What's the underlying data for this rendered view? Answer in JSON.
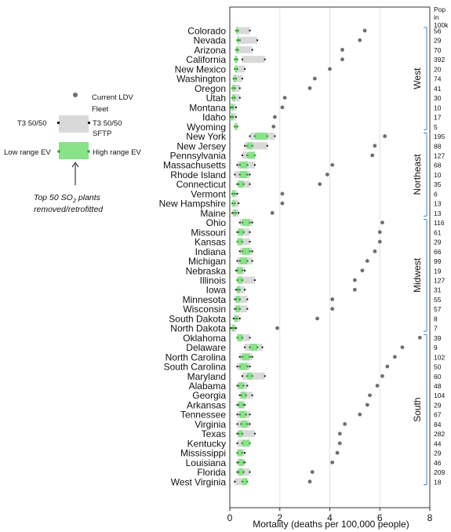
{
  "chart_data": {
    "type": "range-dot",
    "xlabel": "Mortality (deaths per 100,000 people)",
    "xlim": [
      0,
      8
    ],
    "xticks": [
      0,
      2,
      4,
      6,
      8
    ],
    "pop_header": [
      "Pop",
      "in",
      "100k"
    ],
    "legend": {
      "fleet": [
        "Current LDV",
        "Fleet"
      ],
      "t3_left": "T3 50/50",
      "t3_right": [
        "T3 50/50",
        "SFTP"
      ],
      "ev_low": "Low range EV",
      "ev_high": "High range EV",
      "note_line1": "Top 50 SO",
      "note_sub": "2",
      "note_line1_end": " plants",
      "note_line2": "removed/retrofitted"
    },
    "regions": [
      {
        "name": "West",
        "states": [
          {
            "name": "Colorado",
            "pop": "56",
            "t3": [
              0.3,
              0.8
            ],
            "ev": [
              0.25,
              0.3
            ],
            "fleet": 5.4
          },
          {
            "name": "Nevada",
            "pop": "29",
            "t3": [
              0.4,
              1.1
            ],
            "ev": [
              0.3,
              0.35
            ],
            "fleet": 5.2
          },
          {
            "name": "Arizona",
            "pop": "70",
            "t3": [
              0.3,
              0.9
            ],
            "ev": [
              0.25,
              0.3
            ],
            "fleet": 4.5
          },
          {
            "name": "California",
            "pop": "392",
            "t3": [
              0.5,
              1.4
            ],
            "ev": [
              0.2,
              0.3
            ],
            "fleet": 4.5
          },
          {
            "name": "New Mexico",
            "pop": "20",
            "t3": [
              0.2,
              0.6
            ],
            "ev": [
              0.2,
              0.3
            ],
            "fleet": 4.0
          },
          {
            "name": "Washington",
            "pop": "74",
            "t3": [
              0.15,
              0.5
            ],
            "ev": [
              0.15,
              0.25
            ],
            "fleet": 3.4
          },
          {
            "name": "Oregon",
            "pop": "41",
            "t3": [
              0.1,
              0.4
            ],
            "ev": [
              0.1,
              0.2
            ],
            "fleet": 3.2
          },
          {
            "name": "Utah",
            "pop": "30",
            "t3": [
              0.1,
              0.4
            ],
            "ev": [
              0.1,
              0.2
            ],
            "fleet": 2.2
          },
          {
            "name": "Montana",
            "pop": "10",
            "t3": [
              0.05,
              0.25
            ],
            "ev": [
              0.05,
              0.1
            ],
            "fleet": 2.1
          },
          {
            "name": "Idaho",
            "pop": "17",
            "t3": [
              0.05,
              0.25
            ],
            "ev": [
              0.05,
              0.1
            ],
            "fleet": 1.8
          },
          {
            "name": "Wyoming",
            "pop": "5",
            "t3": [
              0.2,
              0.3
            ],
            "ev": [
              0.2,
              0.3
            ],
            "fleet": 1.75
          }
        ]
      },
      {
        "name": "Northeast",
        "states": [
          {
            "name": "New York",
            "pop": "195",
            "t3": [
              0.8,
              1.8
            ],
            "ev": [
              1.0,
              1.5
            ],
            "fleet": 6.2
          },
          {
            "name": "New Jersey",
            "pop": "88",
            "t3": [
              0.6,
              1.5
            ],
            "ev": [
              0.7,
              0.9
            ],
            "fleet": 5.8
          },
          {
            "name": "Pennsylvania",
            "pop": "127",
            "t3": [
              0.5,
              1.0
            ],
            "ev": [
              0.7,
              1.0
            ],
            "fleet": 5.7
          },
          {
            "name": "Massachusetts",
            "pop": "68",
            "t3": [
              0.3,
              1.0
            ],
            "ev": [
              0.4,
              0.7
            ],
            "fleet": 4.1
          },
          {
            "name": "Rhode Island",
            "pop": "10",
            "t3": [
              0.2,
              0.8
            ],
            "ev": [
              0.4,
              0.7
            ],
            "fleet": 3.9
          },
          {
            "name": "Connecticut",
            "pop": "35",
            "t3": [
              0.3,
              0.8
            ],
            "ev": [
              0.35,
              0.55
            ],
            "fleet": 3.6
          },
          {
            "name": "Vermont",
            "pop": "6",
            "t3": [
              0.1,
              0.3
            ],
            "ev": [
              0.1,
              0.2
            ],
            "fleet": 2.1
          },
          {
            "name": "New Hampshire",
            "pop": "13",
            "t3": [
              0.1,
              0.35
            ],
            "ev": [
              0.1,
              0.2
            ],
            "fleet": 2.1
          },
          {
            "name": "Maine",
            "pop": "13",
            "t3": [
              0.1,
              0.35
            ],
            "ev": [
              0.15,
              0.25
            ],
            "fleet": 1.7
          }
        ]
      },
      {
        "name": "Midwest",
        "states": [
          {
            "name": "Ohio",
            "pop": "116",
            "t3": [
              0.4,
              0.9
            ],
            "ev": [
              0.5,
              0.8
            ],
            "fleet": 6.1
          },
          {
            "name": "Missouri",
            "pop": "61",
            "t3": [
              0.3,
              0.8
            ],
            "ev": [
              0.35,
              0.55
            ],
            "fleet": 6.0
          },
          {
            "name": "Kansas",
            "pop": "29",
            "t3": [
              0.3,
              0.8
            ],
            "ev": [
              0.3,
              0.5
            ],
            "fleet": 6.0
          },
          {
            "name": "Indiana",
            "pop": "66",
            "t3": [
              0.4,
              0.9
            ],
            "ev": [
              0.5,
              0.8
            ],
            "fleet": 5.8
          },
          {
            "name": "Michigan",
            "pop": "99",
            "t3": [
              0.3,
              0.9
            ],
            "ev": [
              0.4,
              0.7
            ],
            "fleet": 5.5
          },
          {
            "name": "Nebraska",
            "pop": "19",
            "t3": [
              0.25,
              0.6
            ],
            "ev": [
              0.3,
              0.5
            ],
            "fleet": 5.3
          },
          {
            "name": "Illinois",
            "pop": "127",
            "t3": [
              0.3,
              1.0
            ],
            "ev": [
              0.3,
              0.5
            ],
            "fleet": 5.0
          },
          {
            "name": "Iowa",
            "pop": "31",
            "t3": [
              0.25,
              0.6
            ],
            "ev": [
              0.3,
              0.4
            ],
            "fleet": 5.0
          },
          {
            "name": "Minnesota",
            "pop": "55",
            "t3": [
              0.2,
              0.7
            ],
            "ev": [
              0.25,
              0.4
            ],
            "fleet": 4.1
          },
          {
            "name": "Wisconsin",
            "pop": "57",
            "t3": [
              0.2,
              0.7
            ],
            "ev": [
              0.25,
              0.4
            ],
            "fleet": 4.1
          },
          {
            "name": "South Dakota",
            "pop": "8",
            "t3": [
              0.15,
              0.4
            ],
            "ev": [
              0.2,
              0.3
            ],
            "fleet": 3.5
          },
          {
            "name": "North Dakota",
            "pop": "7",
            "t3": [
              0.05,
              0.25
            ],
            "ev": [
              0.1,
              0.15
            ],
            "fleet": 1.9
          }
        ]
      },
      {
        "name": "South",
        "states": [
          {
            "name": "Oklahoma",
            "pop": "39",
            "t3": [
              0.3,
              0.8
            ],
            "ev": [
              0.3,
              0.5
            ],
            "fleet": 7.6
          },
          {
            "name": "Delaware",
            "pop": "9",
            "t3": [
              0.6,
              1.3
            ],
            "ev": [
              0.8,
              1.1
            ],
            "fleet": 6.9
          },
          {
            "name": "North Carolina",
            "pop": "102",
            "t3": [
              0.4,
              0.9
            ],
            "ev": [
              0.5,
              0.8
            ],
            "fleet": 6.6
          },
          {
            "name": "South Carolina",
            "pop": "50",
            "t3": [
              0.3,
              0.8
            ],
            "ev": [
              0.4,
              0.7
            ],
            "fleet": 6.3
          },
          {
            "name": "Maryland",
            "pop": "60",
            "t3": [
              0.5,
              1.4
            ],
            "ev": [
              0.7,
              0.9
            ],
            "fleet": 6.1
          },
          {
            "name": "Alabama",
            "pop": "48",
            "t3": [
              0.3,
              0.7
            ],
            "ev": [
              0.35,
              0.55
            ],
            "fleet": 5.9
          },
          {
            "name": "Georgia",
            "pop": "104",
            "t3": [
              0.4,
              0.9
            ],
            "ev": [
              0.45,
              0.65
            ],
            "fleet": 5.6
          },
          {
            "name": "Arkansas",
            "pop": "29",
            "t3": [
              0.3,
              0.6
            ],
            "ev": [
              0.35,
              0.55
            ],
            "fleet": 5.5
          },
          {
            "name": "Tennessee",
            "pop": "67",
            "t3": [
              0.3,
              0.8
            ],
            "ev": [
              0.4,
              0.65
            ],
            "fleet": 5.2
          },
          {
            "name": "Virginia",
            "pop": "84",
            "t3": [
              0.3,
              0.8
            ],
            "ev": [
              0.45,
              0.7
            ],
            "fleet": 4.6
          },
          {
            "name": "Texas",
            "pop": "282",
            "t3": [
              0.3,
              1.0
            ],
            "ev": [
              0.35,
              0.5
            ],
            "fleet": 4.4
          },
          {
            "name": "Kentucky",
            "pop": "44",
            "t3": [
              0.3,
              0.8
            ],
            "ev": [
              0.5,
              0.8
            ],
            "fleet": 4.4
          },
          {
            "name": "Mississippi",
            "pop": "29",
            "t3": [
              0.3,
              0.6
            ],
            "ev": [
              0.3,
              0.5
            ],
            "fleet": 4.3
          },
          {
            "name": "Louisiana",
            "pop": "46",
            "t3": [
              0.3,
              0.6
            ],
            "ev": [
              0.35,
              0.55
            ],
            "fleet": 4.1
          },
          {
            "name": "Florida",
            "pop": "209",
            "t3": [
              0.3,
              0.8
            ],
            "ev": [
              0.35,
              0.55
            ],
            "fleet": 3.3
          },
          {
            "name": "West Virginia",
            "pop": "18",
            "t3": [
              0.2,
              0.5
            ],
            "ev": [
              0.5,
              0.7
            ],
            "fleet": 3.2
          }
        ]
      }
    ],
    "colors": {
      "t3": "#d9d9d9",
      "ev": "#88e388",
      "fleet": "#6e6e6e",
      "bracket": "#4a7fc1",
      "endpoint": "#111111",
      "ev_endpoint": "#3a9a3a",
      "grid": "#e0e0e0"
    }
  }
}
